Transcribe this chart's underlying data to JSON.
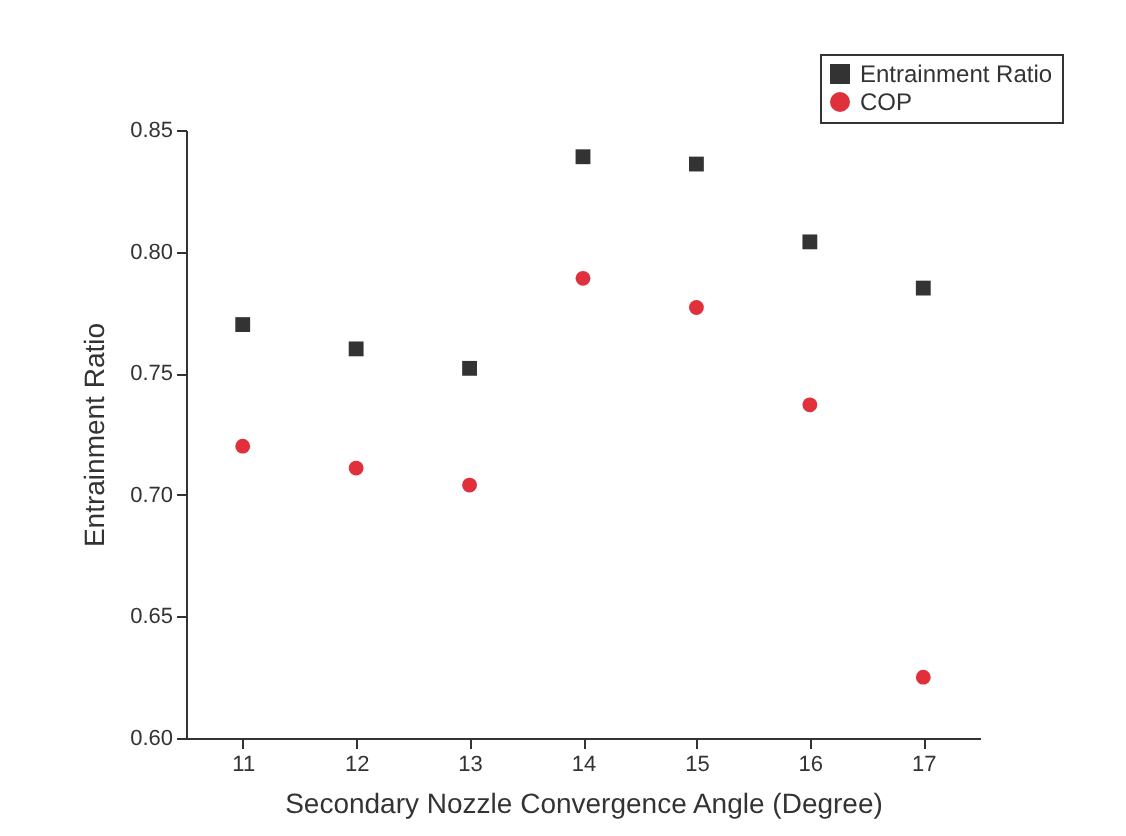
{
  "chart_data": {
    "type": "scatter",
    "xlabel": "Secondary Nozzle Convergence Angle (Degree)",
    "ylabel": "Entrainment Ratio",
    "x": [
      11,
      12,
      13,
      14,
      15,
      16,
      17
    ],
    "series": [
      {
        "name": "Entrainment Ratio",
        "color": "#333333",
        "marker": "square",
        "values": [
          0.77,
          0.76,
          0.752,
          0.839,
          0.836,
          0.804,
          0.785
        ]
      },
      {
        "name": "COP",
        "color": "#e0303c",
        "marker": "circle",
        "values": [
          0.72,
          0.711,
          0.704,
          0.789,
          0.777,
          0.737,
          0.625
        ]
      }
    ],
    "xlim": [
      10.5,
      17.5
    ],
    "xticks": [
      11,
      12,
      13,
      14,
      15,
      16,
      17
    ],
    "ylim": [
      0.6,
      0.85
    ],
    "yticks": [
      {
        "value": 0.6,
        "label": "0.60"
      },
      0.65,
      {
        "value": 0.7,
        "label": "0.70"
      },
      0.75,
      {
        "value": 0.8,
        "label": "0.80"
      },
      0.85
    ],
    "grid": false,
    "legend": "top right"
  }
}
